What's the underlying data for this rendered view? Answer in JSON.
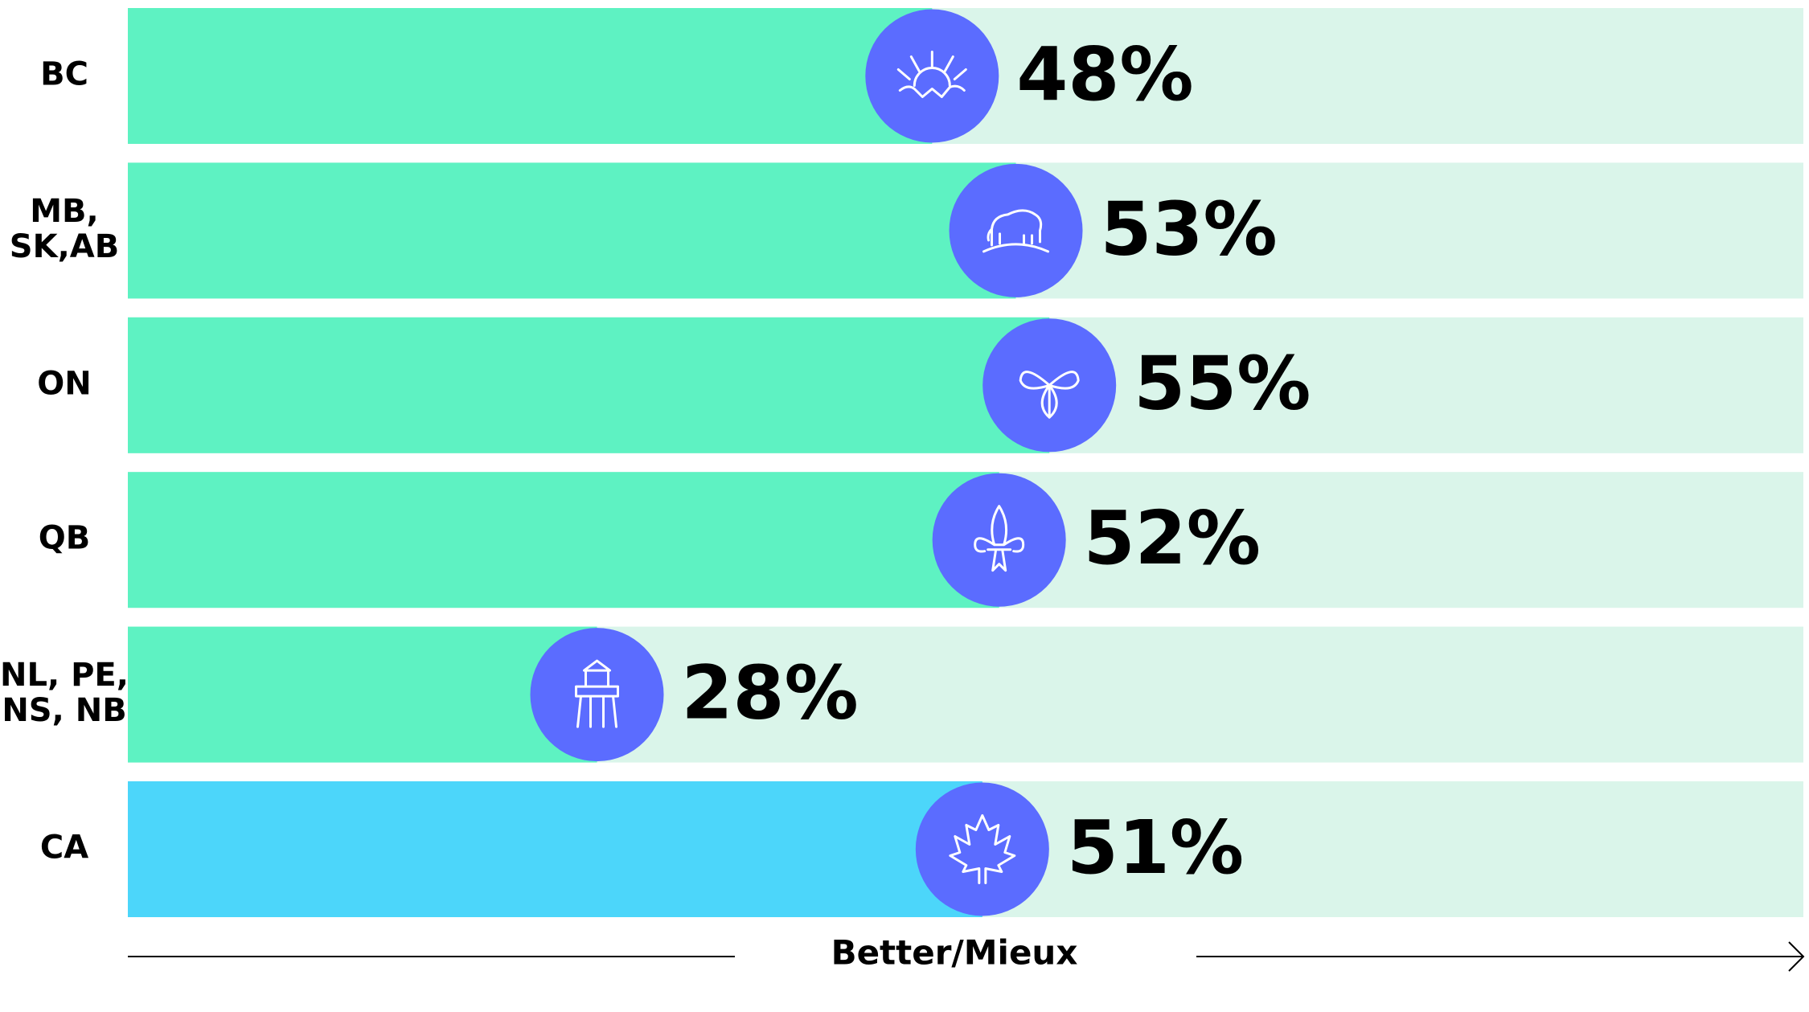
{
  "chart_data": {
    "type": "bar",
    "categories": [
      [
        "BC"
      ],
      [
        "MB,",
        "SK,AB"
      ],
      [
        "ON"
      ],
      [
        "QB"
      ],
      [
        "NL, PE,",
        "NS, NB"
      ],
      [
        "CA"
      ]
    ],
    "values": [
      48,
      53,
      55,
      52,
      28,
      51
    ],
    "value_labels": [
      "48%",
      "53%",
      "55%",
      "52%",
      "28%",
      "51%"
    ],
    "colors": [
      "#5ef2c2",
      "#5ef2c2",
      "#5ef2c2",
      "#5ef2c2",
      "#5ef2c2",
      "#4cd6fa"
    ],
    "track_color": "#daf5ea",
    "icon_color": "#5b6cff",
    "xlim": [
      0,
      100
    ],
    "axis_label": "Better/Mieux"
  }
}
